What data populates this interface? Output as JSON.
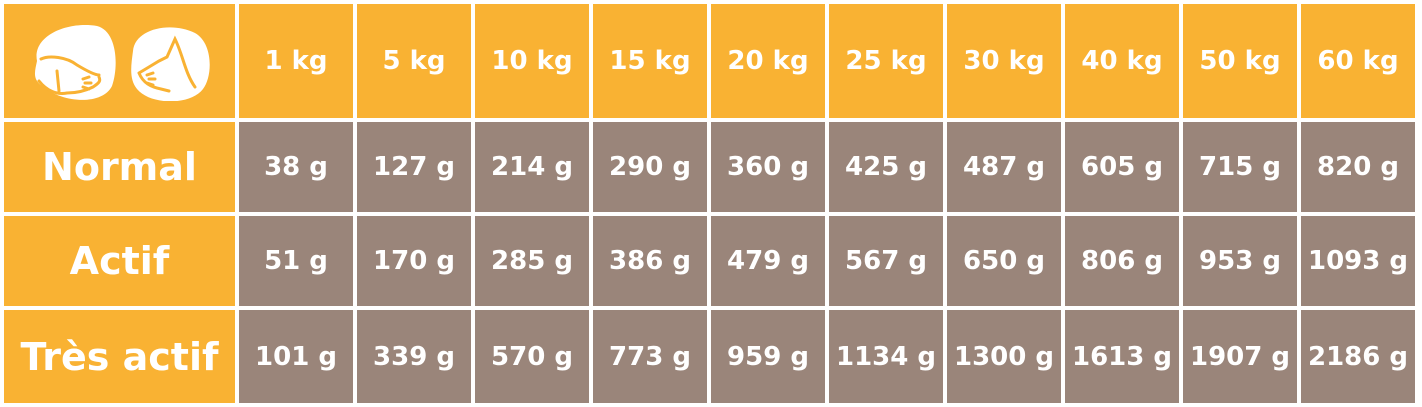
{
  "colors": {
    "header": "#F9B233",
    "cell": "#9A857A",
    "text": "#FFFFFF"
  },
  "header": {
    "icons": [
      "dog-icon",
      "cat-icon"
    ],
    "weights": [
      "1 kg",
      "5 kg",
      "10 kg",
      "15 kg",
      "20 kg",
      "25 kg",
      "30 kg",
      "40 kg",
      "50 kg",
      "60 kg"
    ]
  },
  "rows": [
    {
      "label": "Normal",
      "values": [
        "38 g",
        "127 g",
        "214 g",
        "290 g",
        "360 g",
        "425 g",
        "487 g",
        "605 g",
        "715 g",
        "820 g"
      ]
    },
    {
      "label": "Actif",
      "values": [
        "51 g",
        "170 g",
        "285 g",
        "386 g",
        "479 g",
        "567 g",
        "650 g",
        "806 g",
        "953 g",
        "1093 g"
      ]
    },
    {
      "label": "Très actif",
      "values": [
        "101 g",
        "339 g",
        "570 g",
        "773 g",
        "959 g",
        "1134 g",
        "1300 g",
        "1613 g",
        "1907 g",
        "2186 g"
      ]
    }
  ]
}
